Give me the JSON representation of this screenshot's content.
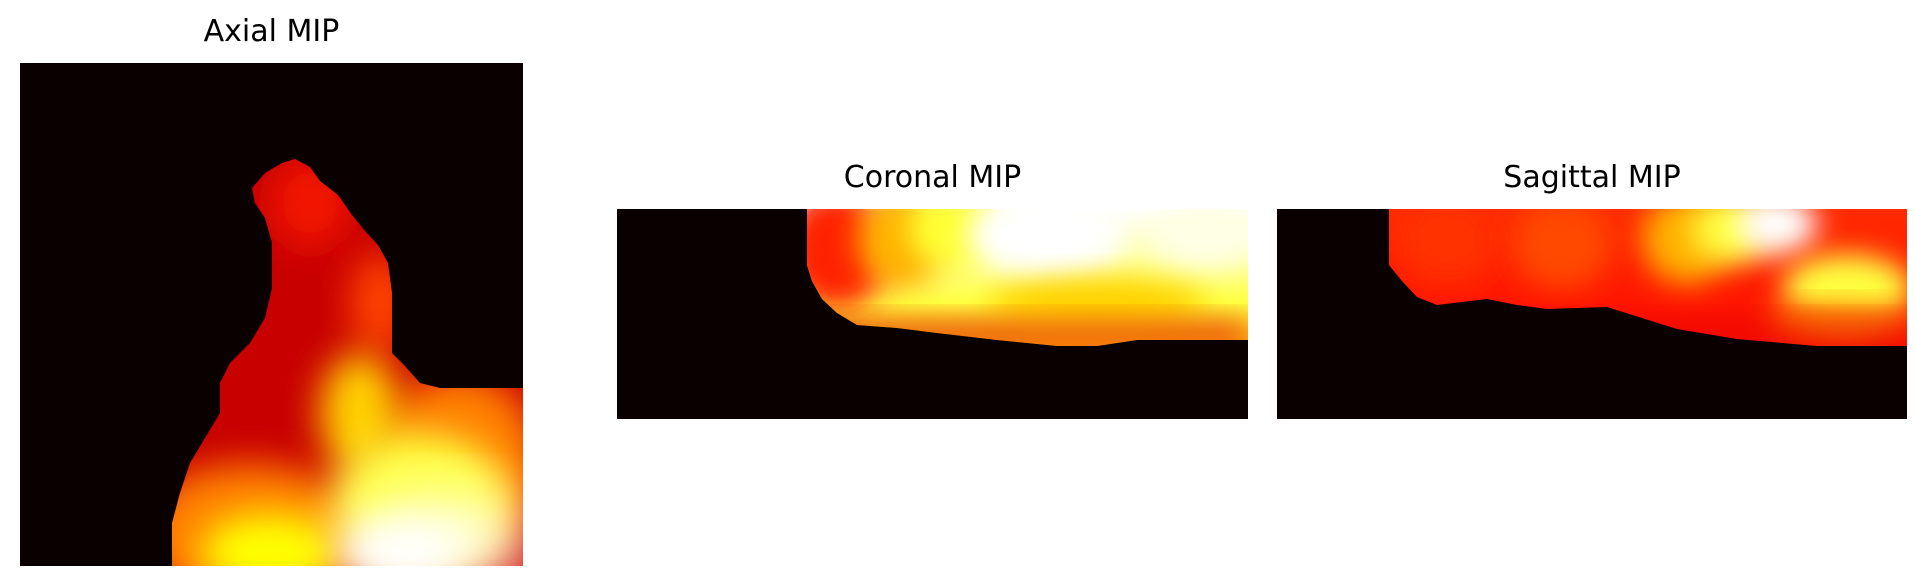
{
  "figure": {
    "colormap": "hot",
    "background_color": "#ffffff",
    "image_background_color": "#0b0000"
  },
  "panels": [
    {
      "id": "axial",
      "title": "Axial MIP"
    },
    {
      "id": "coronal",
      "title": "Coronal MIP"
    },
    {
      "id": "sagittal",
      "title": "Sagittal MIP"
    }
  ]
}
